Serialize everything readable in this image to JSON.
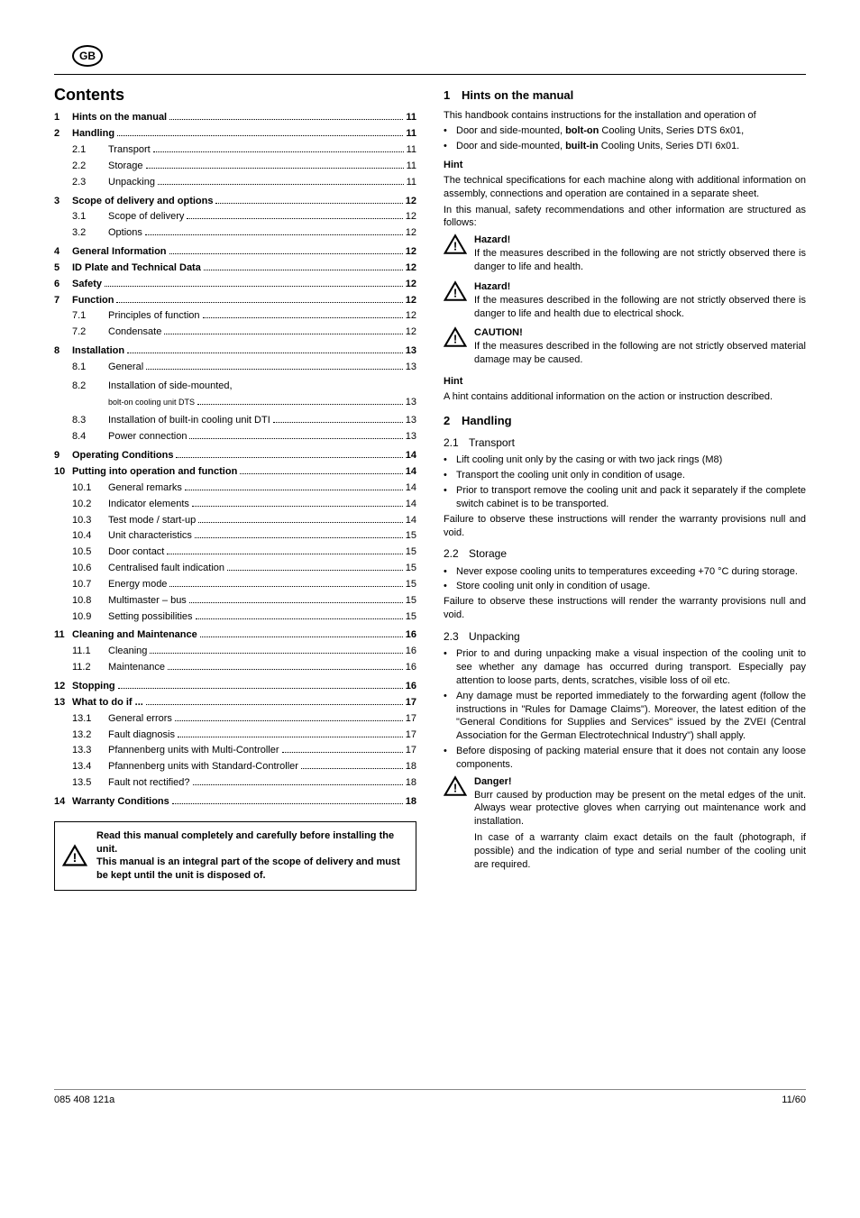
{
  "badge": "GB",
  "contents_title": "Contents",
  "toc": [
    {
      "num": "1",
      "label": "Hints on the manual",
      "page": "11",
      "bold": true,
      "indent": 0
    },
    {
      "num": "2",
      "label": "Handling",
      "page": "11",
      "bold": true,
      "indent": 0
    },
    {
      "num": "2.1",
      "label": "Transport",
      "page": "11",
      "bold": false,
      "indent": 1
    },
    {
      "num": "2.2",
      "label": "Storage",
      "page": "11",
      "bold": false,
      "indent": 1
    },
    {
      "num": "2.3",
      "label": "Unpacking",
      "page": "11",
      "bold": false,
      "indent": 1
    },
    {
      "num": "3",
      "label": "Scope of delivery and options",
      "page": "12",
      "bold": true,
      "indent": 0,
      "gap": true
    },
    {
      "num": "3.1",
      "label": "Scope of delivery",
      "page": "12",
      "bold": false,
      "indent": 1
    },
    {
      "num": "3.2",
      "label": "Options",
      "page": "12",
      "bold": false,
      "indent": 1
    },
    {
      "num": "4",
      "label": "General Information",
      "page": "12",
      "bold": true,
      "indent": 0,
      "gap": true
    },
    {
      "num": "5",
      "label": "ID Plate and Technical Data",
      "page": "12",
      "bold": true,
      "indent": 0
    },
    {
      "num": "6",
      "label": "Safety",
      "page": "12",
      "bold": true,
      "indent": 0
    },
    {
      "num": "7",
      "label": "Function",
      "page": "12",
      "bold": true,
      "indent": 0
    },
    {
      "num": "7.1",
      "label": "Principles of function",
      "page": "12",
      "bold": false,
      "indent": 1
    },
    {
      "num": "7.2",
      "label": "Condensate",
      "page": "12",
      "bold": false,
      "indent": 1
    },
    {
      "num": "8",
      "label": "Installation",
      "page": "13",
      "bold": true,
      "indent": 0,
      "gap": true
    },
    {
      "num": "8.1",
      "label": "General",
      "page": "13",
      "bold": false,
      "indent": 1
    },
    {
      "num": "8.2",
      "label": "Installation of side-mounted,",
      "page": "",
      "bold": false,
      "indent": 1,
      "gap": true
    },
    {
      "num": "",
      "label": "bolt-on cooling unit DTS",
      "page": "13",
      "bold": false,
      "indent": 1,
      "small": true
    },
    {
      "num": "8.3",
      "label": "Installation of built-in cooling unit DTI",
      "page": "13",
      "bold": false,
      "indent": 1,
      "gap": true
    },
    {
      "num": "8.4",
      "label": "Power connection",
      "page": "13",
      "bold": false,
      "indent": 1
    },
    {
      "num": "9",
      "label": "Operating Conditions",
      "page": "14",
      "bold": true,
      "indent": 0,
      "gap": true
    },
    {
      "num": "10",
      "label": "Putting into operation and function",
      "page": "14",
      "bold": true,
      "indent": 0
    },
    {
      "num": "10.1",
      "label": "General remarks",
      "page": "14",
      "bold": false,
      "indent": 1
    },
    {
      "num": "10.2",
      "label": "Indicator elements",
      "page": "14",
      "bold": false,
      "indent": 1
    },
    {
      "num": "10.3",
      "label": "Test mode / start-up",
      "page": "14",
      "bold": false,
      "indent": 1
    },
    {
      "num": "10.4",
      "label": "Unit characteristics",
      "page": "15",
      "bold": false,
      "indent": 1
    },
    {
      "num": "10.5",
      "label": "Door contact",
      "page": "15",
      "bold": false,
      "indent": 1
    },
    {
      "num": "10.6",
      "label": "Centralised fault indication",
      "page": "15",
      "bold": false,
      "indent": 1
    },
    {
      "num": "10.7",
      "label": "Energy mode",
      "page": "15",
      "bold": false,
      "indent": 1
    },
    {
      "num": "10.8",
      "label": "Multimaster – bus",
      "page": "15",
      "bold": false,
      "indent": 1
    },
    {
      "num": "10.9",
      "label": "Setting possibilities",
      "page": "15",
      "bold": false,
      "indent": 1
    },
    {
      "num": "11",
      "label": "Cleaning and Maintenance",
      "page": "16",
      "bold": true,
      "indent": 0,
      "gap": true
    },
    {
      "num": "11.1",
      "label": "Cleaning",
      "page": "16",
      "bold": false,
      "indent": 1
    },
    {
      "num": "11.2",
      "label": "Maintenance",
      "page": "16",
      "bold": false,
      "indent": 1
    },
    {
      "num": "12",
      "label": "Stopping",
      "page": "16",
      "bold": true,
      "indent": 0,
      "gap": true
    },
    {
      "num": "13",
      "label": "What to do if ...",
      "page": "17",
      "bold": true,
      "indent": 0
    },
    {
      "num": "13.1",
      "label": "General errors",
      "page": "17",
      "bold": false,
      "indent": 1
    },
    {
      "num": "13.2",
      "label": "Fault diagnosis",
      "page": "17",
      "bold": false,
      "indent": 1
    },
    {
      "num": "13.3",
      "label": "Pfannenberg units with Multi-Controller",
      "page": "17",
      "bold": false,
      "indent": 1
    },
    {
      "num": "13.4",
      "label": "Pfannenberg units with Standard-Controller",
      "page": "18",
      "bold": false,
      "indent": 1
    },
    {
      "num": "13.5",
      "label": "Fault not rectified?",
      "page": "18",
      "bold": false,
      "indent": 1
    },
    {
      "num": "14",
      "label": "Warranty Conditions",
      "page": "18",
      "bold": true,
      "indent": 0,
      "gap": true
    }
  ],
  "read_box": "Read this manual completely and carefully before installing the unit.\nThis manual is an integral part of the scope of delivery and must be kept until the unit is disposed of.",
  "right": {
    "s1_title_num": "1",
    "s1_title": "Hints on the manual",
    "s1_intro": "This handbook contains instructions for the installation and operation of",
    "s1_bullets": [
      "Door and side-mounted, <b>bolt-on</b> Cooling Units, Series DTS 6x01,",
      "Door and side-mounted, <b>built-in</b> Cooling Units, Series DTI 6x01."
    ],
    "hint_label": "Hint",
    "s1_hint_p1": "The technical specifications for each machine along with additional information on assembly, connections and operation are contained in a separate sheet.",
    "s1_hint_p2": "In this manual, safety recommendations and other information are structured as follows:",
    "hazards": [
      {
        "title": "Hazard!",
        "body": "If the measures described in the following are not strictly observed there is danger to life and health."
      },
      {
        "title": "Hazard!",
        "body": "If the measures described in the following are not strictly observed there is danger to life and health due to electrical shock."
      },
      {
        "title": "CAUTION!",
        "body": "If the measures described in the following are not strictly observed material damage may be caused."
      }
    ],
    "s1_hint_bottom": "A hint contains additional information on the action or instruction described.",
    "s2_title_num": "2",
    "s2_title": "Handling",
    "s2_1_num": "2.1",
    "s2_1_title": "Transport",
    "s2_1_bullets": [
      "Lift cooling unit only by the casing or with two jack rings (M8)",
      "Transport the cooling unit only in condition of usage.",
      "Prior to transport remove the cooling unit and pack it separately if the complete switch cabinet is to be transported."
    ],
    "s2_1_footer": "Failure to observe these instructions will render the warranty provisions null and void.",
    "s2_2_num": "2.2",
    "s2_2_title": "Storage",
    "s2_2_bullets": [
      "Never expose cooling units to temperatures exceeding +70 °C during storage.",
      "Store cooling unit only in condition of usage."
    ],
    "s2_2_footer": "Failure to observe these instructions will render the warranty provisions null and void.",
    "s2_3_num": "2.3",
    "s2_3_title": "Unpacking",
    "s2_3_bullets": [
      "Prior to and during unpacking make a visual inspection of the cooling unit to see whether any damage has occurred during transport. Especially pay attention to loose parts, dents, scratches, visible loss of oil etc.",
      "Any damage must be reported immediately to the forwarding agent (follow the instructions in \"Rules for Damage Claims\"). Moreover, the latest edition of the \"General Conditions for Supplies and Services\" issued by the ZVEI (Central Association for the German Electrotechnical Industry\") shall apply.",
      "Before disposing of packing material ensure that it does not contain any loose components."
    ],
    "danger_title": "Danger!",
    "danger_body1": "Burr caused by production may be present on the metal edges of the unit. Always wear protective gloves when carrying out maintenance work and installation.",
    "danger_body2": "In case of a warranty claim exact details on the fault (photograph, if possible) and the indication of type and serial number of the cooling unit are required."
  },
  "footer_left": "085 408 121a",
  "footer_right": "11/60"
}
